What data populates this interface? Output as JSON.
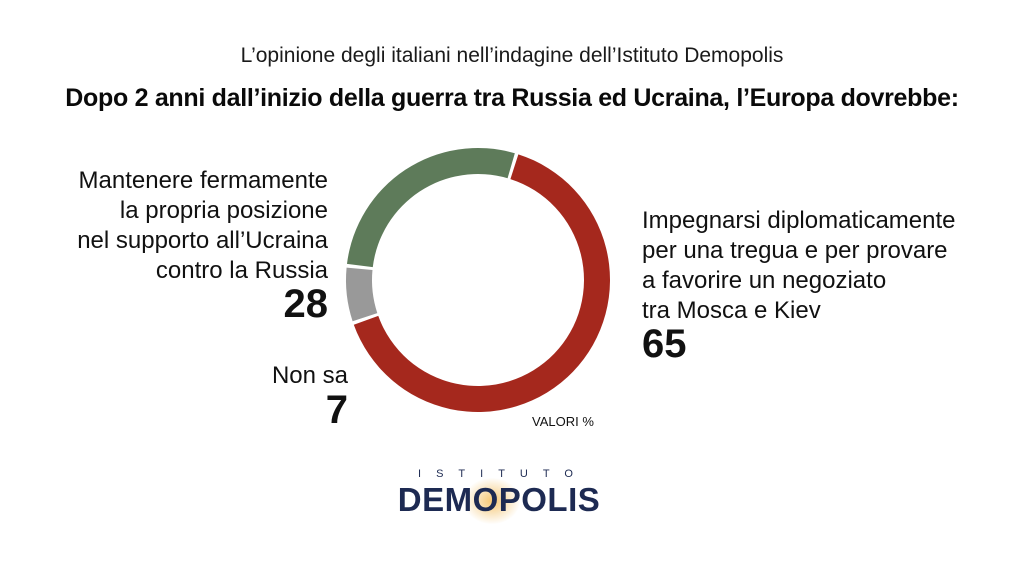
{
  "header": {
    "subtitle": "L’opinione degli italiani nell’indagine dell’Istituto Demopolis",
    "title": "Dopo 2 anni dall’inizio della guerra tra Russia ed Ucraina, l’Europa dovrebbe:"
  },
  "chart_data": {
    "type": "pie",
    "unit_label": "VALORI %",
    "slices": [
      {
        "label": "Impegnarsi diplomaticamente per una tregua e per provare a favorire un negoziato tra Mosca e Kiev",
        "value": 65,
        "color": "#a5281d"
      },
      {
        "label": "Non sa",
        "value": 7,
        "color": "#999999"
      },
      {
        "label": "Mantenere fermamente la propria posizione nel supporto all’Ucraina contro la Russia",
        "value": 28,
        "color": "#5e7b5a"
      }
    ]
  },
  "labels": {
    "left_lines": [
      "Mantenere fermamente",
      "la propria posizione",
      "nel supporto all’Ucraina",
      "contro la Russia"
    ],
    "left_value": "28",
    "right_lines": [
      "Impegnarsi diplomaticamente",
      "per una tregua e per provare",
      "a favorire un negoziato",
      "tra Mosca e Kiev"
    ],
    "right_value": "65",
    "ns_label": "Non sa",
    "ns_value": "7"
  },
  "logo": {
    "top": "ISTITUTO",
    "main": "DEMOPOLIS"
  }
}
